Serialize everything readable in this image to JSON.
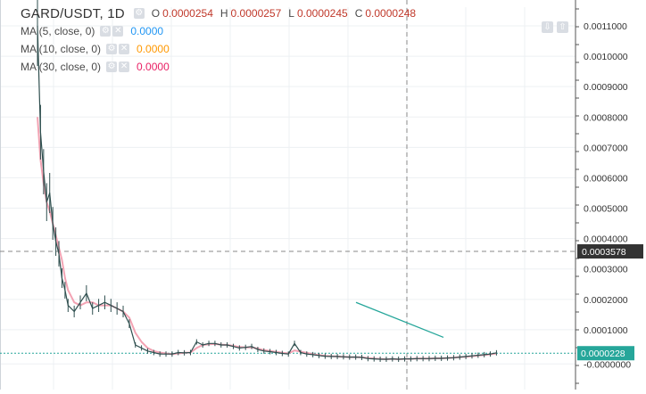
{
  "header": {
    "symbol": "GARD/USDT, 1D",
    "open_key": "O",
    "open": "0.0000254",
    "high_key": "H",
    "high": "0.0000257",
    "low_key": "L",
    "low": "0.0000245",
    "close_key": "C",
    "close": "0.0000248"
  },
  "indicators": [
    {
      "label": "MA (5, close, 0)",
      "value": "0.0000",
      "color": "#2196f3"
    },
    {
      "label": "MA (10, close, 0)",
      "value": "0.0000",
      "color": "#ff9800"
    },
    {
      "label": "MA (30, close, 0)",
      "value": "0.0000",
      "color": "#e91e63"
    }
  ],
  "icons": {
    "settings": "gear-icon",
    "close": "close-icon",
    "scroll_down": "arrow-down-icon",
    "scroll_up": "arrow-up-icon"
  },
  "colors": {
    "price_line": "#2f4f4f",
    "ma_line": "#f08ca0",
    "trend_line": "#26a69a",
    "last_price_bg": "#26a69a",
    "crosshair_label_bg": "#333333"
  },
  "chart_data": {
    "type": "line",
    "ylim": [
      -3e-05,
      0.00115
    ],
    "y_ticks": [
      "0.0011000",
      "0.0010000",
      "0.0009000",
      "0.0008000",
      "0.0007000",
      "0.0006000",
      "0.0005000",
      "0.0004000",
      "0.0003000",
      "0.0002000",
      "0.0001000",
      "-0.0000000"
    ],
    "y_tick_values": [
      0.0011,
      0.001,
      0.0009,
      0.0008,
      0.0007,
      0.0006,
      0.0005,
      0.0004,
      0.0003,
      0.0002,
      0.0001,
      -1.25e-05
    ],
    "crosshair_price": "0.0003578",
    "crosshair_value": 0.0003578,
    "last_price": "0.0000228",
    "last_value": 2.28e-05,
    "x": [
      0,
      1,
      2,
      3,
      4,
      5,
      6,
      7,
      8,
      9,
      10,
      12,
      14,
      16,
      18,
      20,
      22,
      24,
      26,
      28,
      30,
      32,
      34,
      36,
      38,
      40,
      42,
      44,
      46,
      48,
      50,
      52,
      54,
      56,
      58,
      60,
      62,
      64,
      66,
      68,
      70,
      72,
      74,
      76,
      78,
      80,
      82,
      84,
      86,
      88,
      90,
      92,
      94,
      96,
      98,
      100,
      102,
      104,
      106,
      108,
      110,
      112,
      114,
      116,
      118,
      120,
      122,
      124,
      126,
      128,
      130,
      132,
      134,
      136,
      138,
      140,
      142,
      144,
      146,
      148,
      150
    ],
    "series": [
      {
        "values": [
          0.0011,
          0.00075,
          0.00062,
          0.00052,
          0.00055,
          0.00045,
          0.00039,
          0.00035,
          0.00027,
          0.00023,
          0.00018,
          0.00016,
          0.00019,
          0.00022,
          0.00017,
          0.00018,
          0.00019,
          0.00018,
          0.00017,
          0.00016,
          0.00012,
          5e-05,
          4e-05,
          3e-05,
          2.5e-05,
          2e-05,
          2e-05,
          2e-05,
          2.5e-05,
          2.4e-05,
          2.5e-05,
          6e-05,
          5e-05,
          5.5e-05,
          5.5e-05,
          5e-05,
          5e-05,
          4.5e-05,
          4e-05,
          4.2e-05,
          4.5e-05,
          3.5e-05,
          3e-05,
          2.8e-05,
          2.5e-05,
          2.2e-05,
          2e-05,
          5.5e-05,
          2.5e-05,
          2e-05,
          1.8e-05,
          1.5e-05,
          1.3e-05,
          1.2e-05,
          1.2e-05,
          1.1e-05,
          1e-05,
          1e-05,
          9e-06,
          5e-06,
          4e-06,
          3e-06,
          3e-06,
          4e-06,
          3e-06,
          4e-06,
          4e-06,
          5e-06,
          5e-06,
          5e-06,
          6e-06,
          6e-06,
          7e-06,
          8e-06,
          1e-05,
          1.2e-05,
          1.4e-05,
          1.6e-05,
          1.8e-05,
          2e-05,
          2.4e-05
        ]
      },
      {
        "values": [
          0.0008,
          0.00066,
          0.00058,
          0.00052,
          0.00049,
          0.00045,
          0.00041,
          0.00037,
          0.00033,
          0.00027,
          0.00023,
          0.00019,
          0.00018,
          0.00019,
          0.00019,
          0.00018,
          0.00018,
          0.00018,
          0.00017,
          0.00016,
          0.00014,
          9e-05,
          6e-05,
          4e-05,
          3e-05,
          2.5e-05,
          2.2e-05,
          2e-05,
          2.2e-05,
          2.4e-05,
          2.5e-05,
          4e-05,
          5e-05,
          5.2e-05,
          5.3e-05,
          5.1e-05,
          5e-05,
          4.7e-05,
          4.3e-05,
          4.2e-05,
          4.2e-05,
          3.8e-05,
          3.3e-05,
          3e-05,
          2.7e-05,
          2.4e-05,
          2.2e-05,
          3.2e-05,
          2.8e-05,
          2.4e-05,
          2e-05,
          1.7e-05,
          1.4e-05,
          1.3e-05,
          1.2e-05,
          1.1e-05,
          1e-05,
          1e-05,
          9e-06,
          7e-06,
          5e-06,
          4e-06,
          3e-06,
          4e-06,
          3e-06,
          4e-06,
          4e-06,
          5e-06,
          5e-06,
          5e-06,
          6e-06,
          6e-06,
          7e-06,
          8e-06,
          1e-05,
          1.1e-05,
          1.3e-05,
          1.5e-05,
          1.7e-05,
          1.9e-05,
          2.2e-05
        ]
      }
    ],
    "trend_line": {
      "x": [
        80,
        100
      ],
      "y": [
        0.00019,
        7.5e-05
      ]
    }
  }
}
